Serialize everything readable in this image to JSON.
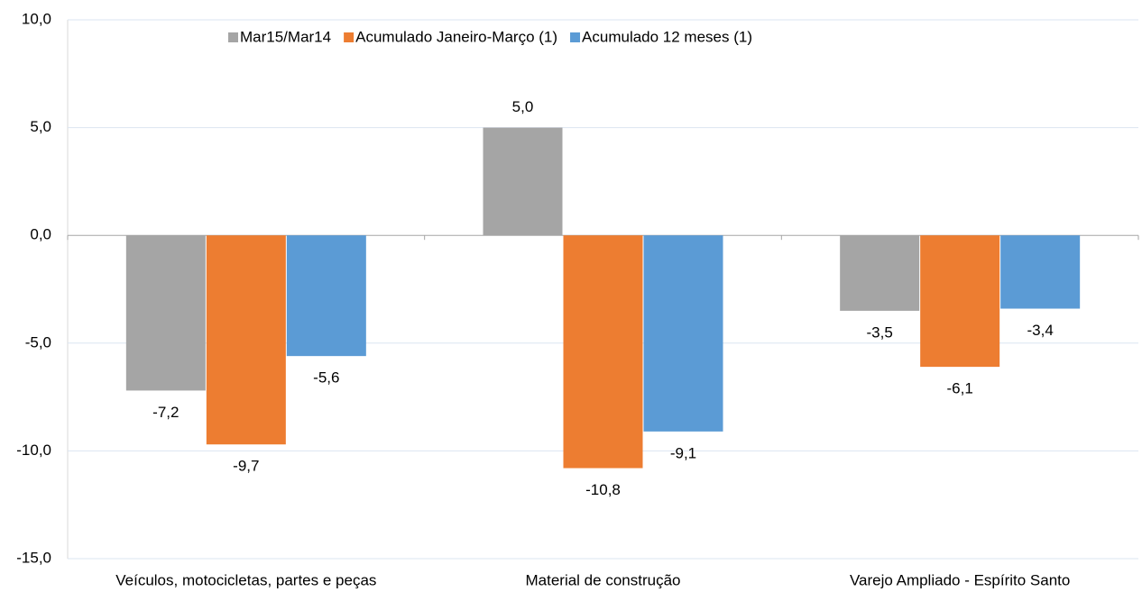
{
  "chart_data": {
    "type": "bar",
    "categories": [
      "Veículos, motocicletas, partes e peças",
      "Material de construção",
      "Varejo Ampliado - Espírito Santo"
    ],
    "series": [
      {
        "name": "Mar15/Mar14",
        "color": "#a5a5a5",
        "values": [
          -7.2,
          5.0,
          -3.5
        ],
        "value_labels": [
          "-7,2",
          "5,0",
          "-3,5"
        ]
      },
      {
        "name": "Acumulado Janeiro-Março (1)",
        "color": "#ed7d31",
        "values": [
          -9.7,
          -10.8,
          -6.1
        ],
        "value_labels": [
          "-9,7",
          "-10,8",
          "-6,1"
        ]
      },
      {
        "name": "Acumulado 12 meses (1)",
        "color": "#5b9bd5",
        "values": [
          -5.6,
          -9.1,
          -3.4
        ],
        "value_labels": [
          "-5,6",
          "-9,1",
          "-3,4"
        ]
      }
    ],
    "ylim": [
      -15,
      10
    ],
    "yticks": [
      {
        "value": -15,
        "label": "-15,0"
      },
      {
        "value": -10,
        "label": "-10,0"
      },
      {
        "value": -5,
        "label": "-5,0"
      },
      {
        "value": 0,
        "label": "0,0"
      },
      {
        "value": 5,
        "label": "5,0"
      },
      {
        "value": 10,
        "label": "10,0"
      }
    ],
    "grid": true,
    "legend": "top"
  }
}
